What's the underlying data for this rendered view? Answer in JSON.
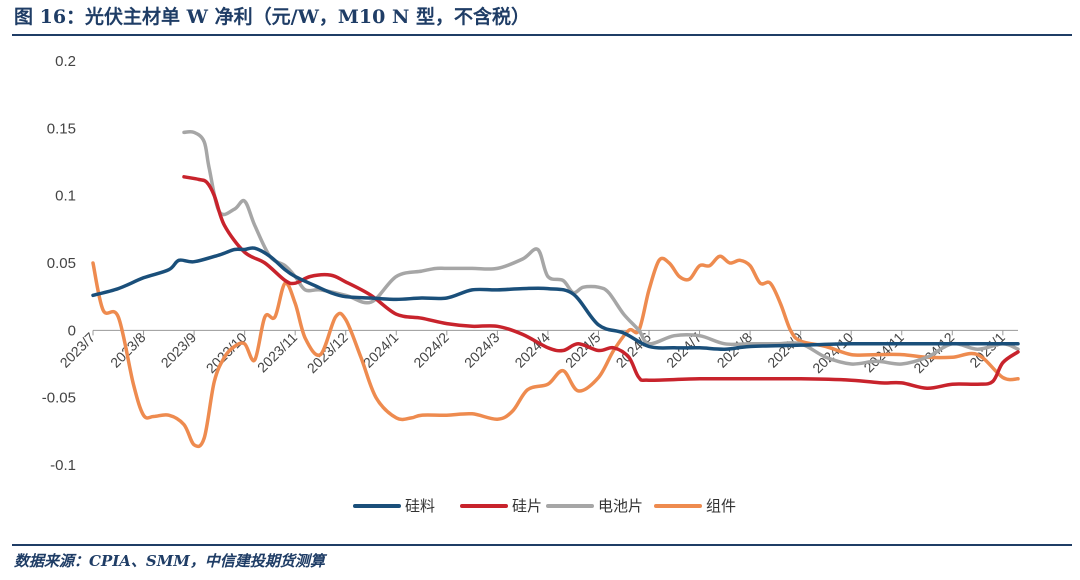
{
  "header": {
    "title": "图 16：光伏主材单 W 净利（元/W，M10 N 型，不含税）"
  },
  "footer": {
    "source": "数据来源：CPIA、SMM，中信建投期货测算"
  },
  "chart_data": {
    "type": "line",
    "title": "图 16：光伏主材单 W 净利（元/W，M10 N 型，不含税）",
    "xlabel": "",
    "ylabel": "",
    "ylim": [
      -0.1,
      0.2
    ],
    "yticks": [
      "0.2",
      "0.15",
      "0.1",
      "0.05",
      "0",
      "-0.05",
      "-0.1"
    ],
    "categories": [
      "2023/7",
      "2023/8",
      "2023/9",
      "2023/10",
      "2023/11",
      "2023/12",
      "2024/1",
      "2024/2",
      "2024/3",
      "2024/4",
      "2024/5",
      "2024/6",
      "2024/7",
      "2024/8",
      "2024/9",
      "2024/10",
      "2024/11",
      "2024/12",
      "2025/1"
    ],
    "x_range": [
      0,
      18.3
    ],
    "grid": false,
    "legend": "bottom",
    "series": [
      {
        "name": "硅料",
        "color": "#1a4f7a",
        "x": [
          0,
          0.5,
          1,
          1.5,
          1.7,
          2,
          2.5,
          2.8,
          3,
          3.2,
          3.5,
          3.8,
          4,
          4.4,
          4.7,
          5,
          5.5,
          6,
          6.5,
          7,
          7.5,
          8,
          8.5,
          9,
          9.5,
          10,
          10.5,
          11,
          11.5,
          12,
          12.5,
          13,
          14,
          15,
          16,
          17,
          18,
          18.3
        ],
        "y": [
          0.026,
          0.031,
          0.039,
          0.045,
          0.052,
          0.051,
          0.056,
          0.06,
          0.06,
          0.061,
          0.055,
          0.045,
          0.04,
          0.033,
          0.028,
          0.025,
          0.024,
          0.023,
          0.024,
          0.024,
          0.03,
          0.03,
          0.031,
          0.031,
          0.027,
          0.004,
          -0.002,
          -0.012,
          -0.013,
          -0.013,
          -0.014,
          -0.012,
          -0.011,
          -0.01,
          -0.01,
          -0.01,
          -0.01,
          -0.01
        ]
      },
      {
        "name": "硅片",
        "color": "#c8232c",
        "x": [
          1.8,
          2.1,
          2.25,
          2.4,
          2.6,
          3,
          3.4,
          3.8,
          4,
          4.3,
          4.7,
          5,
          5.5,
          6,
          6.5,
          7,
          7.5,
          8,
          8.5,
          9,
          9.3,
          9.6,
          10,
          10.3,
          10.6,
          10.8,
          11,
          12,
          13,
          14,
          15,
          15.6,
          16,
          16.5,
          17,
          17.5,
          17.8,
          18,
          18.3
        ],
        "y": [
          0.114,
          0.112,
          0.11,
          0.1,
          0.078,
          0.058,
          0.05,
          0.037,
          0.035,
          0.04,
          0.041,
          0.036,
          0.026,
          0.012,
          0.009,
          0.005,
          0.003,
          0.003,
          -0.003,
          -0.013,
          -0.015,
          -0.01,
          -0.015,
          -0.013,
          -0.02,
          -0.035,
          -0.037,
          -0.036,
          -0.036,
          -0.036,
          -0.037,
          -0.039,
          -0.039,
          -0.043,
          -0.04,
          -0.04,
          -0.038,
          -0.024,
          -0.016
        ]
      },
      {
        "name": "电池片",
        "color": "#a6a6a6",
        "x": [
          1.8,
          2,
          2.2,
          2.3,
          2.5,
          2.8,
          3,
          3.2,
          3.5,
          3.8,
          4,
          4.2,
          4.5,
          5,
          5.5,
          6,
          6.5,
          6.8,
          7,
          7.5,
          8,
          8.5,
          8.8,
          9,
          9.3,
          9.5,
          9.7,
          10,
          10.2,
          10.5,
          10.8,
          11,
          11.5,
          12,
          12.5,
          13,
          13.5,
          14,
          14.5,
          15,
          15.5,
          16,
          16.5,
          17,
          17.5,
          18,
          18.3
        ],
        "y": [
          0.147,
          0.147,
          0.14,
          0.12,
          0.088,
          0.09,
          0.096,
          0.078,
          0.055,
          0.048,
          0.04,
          0.03,
          0.03,
          0.026,
          0.021,
          0.04,
          0.044,
          0.046,
          0.046,
          0.046,
          0.046,
          0.053,
          0.06,
          0.04,
          0.037,
          0.028,
          0.032,
          0.032,
          0.028,
          0.012,
          0.0,
          -0.01,
          -0.004,
          -0.004,
          -0.01,
          -0.01,
          -0.01,
          -0.01,
          -0.02,
          -0.025,
          -0.023,
          -0.025,
          -0.02,
          -0.01,
          -0.014,
          -0.01,
          -0.014
        ]
      },
      {
        "name": "组件",
        "color": "#ee8b4f",
        "x": [
          0,
          0.2,
          0.5,
          0.8,
          1,
          1.2,
          1.5,
          1.8,
          2,
          2.2,
          2.4,
          2.6,
          2.8,
          3,
          3.2,
          3.4,
          3.6,
          3.8,
          4,
          4.2,
          4.5,
          4.8,
          5,
          5.3,
          5.6,
          6,
          6.3,
          6.5,
          7,
          7.5,
          8,
          8.3,
          8.6,
          9,
          9.3,
          9.6,
          10,
          10.3,
          10.6,
          10.8,
          11,
          11.2,
          11.4,
          11.6,
          11.8,
          12,
          12.2,
          12.4,
          12.6,
          12.8,
          13,
          13.2,
          13.4,
          13.6,
          13.8,
          14,
          14.5,
          15,
          15.5,
          16,
          16.5,
          17,
          17.5,
          18,
          18.3
        ],
        "y": [
          0.05,
          0.015,
          0.01,
          -0.04,
          -0.063,
          -0.064,
          -0.063,
          -0.07,
          -0.085,
          -0.08,
          -0.038,
          -0.02,
          -0.012,
          -0.01,
          -0.022,
          0.01,
          0.01,
          0.035,
          0.02,
          -0.006,
          -0.018,
          0.01,
          0.008,
          -0.02,
          -0.05,
          -0.065,
          -0.065,
          -0.063,
          -0.063,
          -0.062,
          -0.066,
          -0.06,
          -0.044,
          -0.04,
          -0.03,
          -0.045,
          -0.035,
          -0.015,
          0.0,
          0.0,
          0.03,
          0.052,
          0.05,
          0.04,
          0.038,
          0.048,
          0.048,
          0.055,
          0.05,
          0.052,
          0.048,
          0.035,
          0.035,
          0.02,
          0.0,
          -0.008,
          -0.012,
          -0.018,
          -0.018,
          -0.018,
          -0.02,
          -0.02,
          -0.018,
          -0.035,
          -0.036
        ]
      }
    ]
  }
}
